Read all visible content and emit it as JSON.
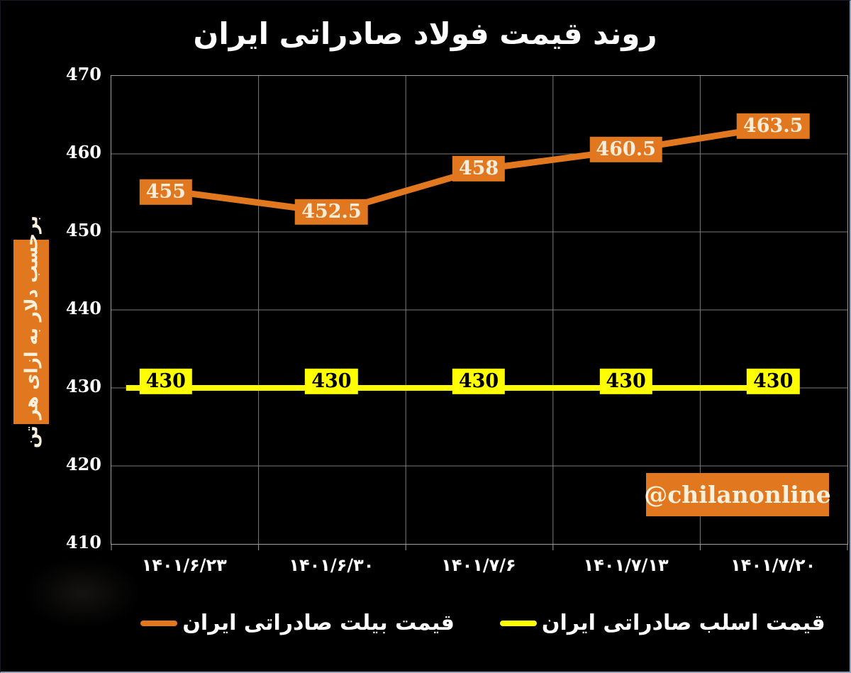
{
  "title": "روند قیمت فولاد صادراتی ایران",
  "watermark_badge": "@chilanonline",
  "chart_data": {
    "type": "line",
    "title": "روند قیمت فولاد صادراتی ایران",
    "ylabel": "برحسب دلار به ازای هر تن",
    "categories": [
      "۱۴۰۱/۶/۲۳",
      "۱۴۰۱/۶/۳۰",
      "۱۴۰۱/۷/۶",
      "۱۴۰۱/۷/۱۳",
      "۱۴۰۱/۷/۲۰"
    ],
    "series": [
      {
        "name": "قیمت بیلت صادراتی ایران",
        "color": "#e1771e",
        "values": [
          455,
          452.5,
          458,
          460.5,
          463.5
        ],
        "label_bg": "#e1771e",
        "label_color": "#f7edda"
      },
      {
        "name": "قیمت اسلب صادراتی ایران",
        "color": "#ffff00",
        "values": [
          430,
          430,
          430,
          430,
          430
        ],
        "label_bg": "#ffff00",
        "label_color": "#000000"
      }
    ],
    "ylim": [
      410,
      470
    ],
    "yticks": [
      470,
      460,
      450,
      440,
      430,
      420,
      410
    ],
    "grid": true,
    "legend_position": "bottom",
    "background": "#000000"
  }
}
